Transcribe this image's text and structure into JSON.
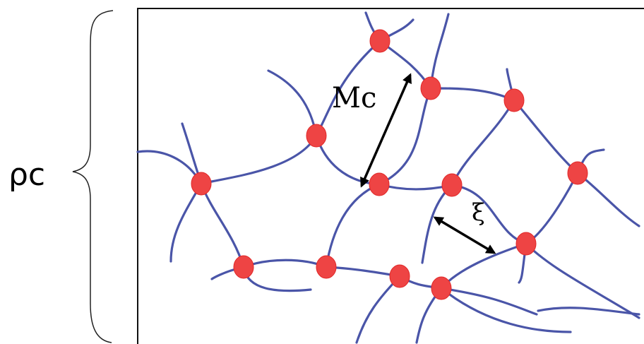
{
  "labels": {
    "rho": "ρc",
    "mc": "Mc",
    "xi": "ξ"
  },
  "colors": {
    "strand": "#4a55a8",
    "node": "#ee4444",
    "arrow": "#000000"
  }
}
